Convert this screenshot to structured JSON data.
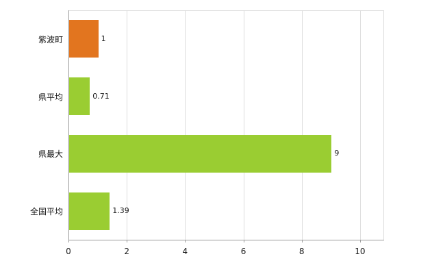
{
  "chart_data": {
    "type": "bar",
    "orientation": "horizontal",
    "title": "",
    "xlabel": "",
    "ylabel": "",
    "categories": [
      "紫波町",
      "県平均",
      "県最大",
      "全国平均"
    ],
    "values": [
      1,
      0.71,
      9,
      1.39
    ],
    "value_labels": [
      "1",
      "0.71",
      "9",
      "1.39"
    ],
    "bar_colors": [
      "#e2751f",
      "#9acd32",
      "#9acd32",
      "#9acd32"
    ],
    "xlim": [
      0,
      10.8
    ],
    "xticks": [
      0,
      2,
      4,
      6,
      8,
      10
    ],
    "xtick_labels": [
      "0",
      "2",
      "4",
      "6",
      "8",
      "10"
    ],
    "grid": "vertical",
    "legend": "none",
    "colors": {
      "highlight_bar": "#e2751f",
      "default_bar": "#9acd32",
      "gridline": "#dcdcdc",
      "axis": "#9a9a9a",
      "text": "#1a1a1a",
      "background": "#ffffff"
    }
  }
}
